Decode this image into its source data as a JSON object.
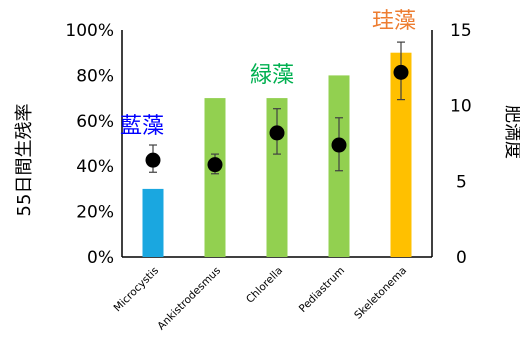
{
  "chart_data": {
    "type": "bar",
    "categories": [
      "Microcystis",
      "Ankistrodesmus",
      "Chlorella",
      "Pediastrum",
      "Skeletonema"
    ],
    "series": [
      {
        "name": "55日間生残率",
        "axis": "left",
        "values": [
          30,
          70,
          70,
          80,
          90
        ],
        "colors": [
          "#1aa7e0",
          "#92d050",
          "#92d050",
          "#92d050",
          "#ffc000"
        ]
      },
      {
        "name": "肥満度",
        "axis": "right",
        "type": "scatter",
        "values": [
          6.4,
          6.1,
          8.2,
          7.4,
          12.2
        ],
        "error_low": [
          5.6,
          5.5,
          6.8,
          5.7,
          10.4
        ],
        "error_high": [
          7.4,
          6.8,
          9.8,
          9.2,
          14.2
        ],
        "color": "#000000"
      }
    ],
    "ylabel": "55日間生残率",
    "ylabel_right": "肥満度",
    "ylim": [
      0,
      100
    ],
    "ylim_right": [
      0,
      15
    ],
    "yticks": [
      "0%",
      "20%",
      "40%",
      "60%",
      "80%",
      "100%"
    ],
    "yticks_right": [
      "0",
      "5",
      "10",
      "15"
    ],
    "groups": [
      {
        "label": "藍藻",
        "color": "#0000ff"
      },
      {
        "label": "緑藻",
        "color": "#00b050"
      },
      {
        "label": "珪藻",
        "color": "#ed7d31"
      }
    ],
    "grid": false,
    "legend": "none"
  }
}
